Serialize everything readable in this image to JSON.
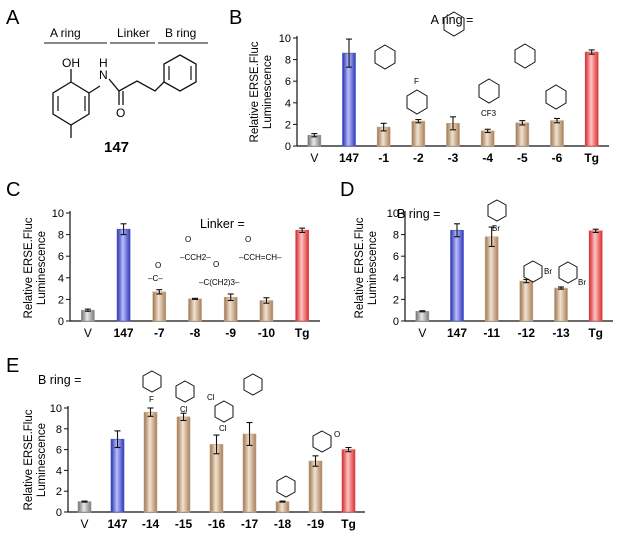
{
  "panel_letters": [
    "A",
    "B",
    "C",
    "D",
    "E"
  ],
  "panelA": {
    "labels": [
      "A ring",
      "Linker",
      "B ring"
    ],
    "compound": "147",
    "atoms": {
      "oh": "OH",
      "nh": "N",
      "h": "H",
      "o": "O"
    }
  },
  "colors": {
    "gray": "#9a9a9a",
    "blue": "#4a52c8",
    "tan": "#c8a684",
    "red": "#e5484a",
    "axis": "#111111"
  },
  "chart_data": [
    {
      "panel": "B",
      "type": "bar",
      "title": "A ring =",
      "ylabel": [
        "Relative ERSE.Fluc",
        "Luminescence"
      ],
      "ylim": [
        0,
        10
      ],
      "yticks": [
        0,
        2,
        4,
        6,
        8,
        10
      ],
      "categories": [
        "V",
        "147",
        "-1",
        "-2",
        "-3",
        "-4",
        "-5",
        "-6",
        "Tg"
      ],
      "values": [
        1.0,
        8.6,
        1.75,
        2.3,
        2.1,
        1.4,
        2.15,
        2.35,
        8.7
      ],
      "errors": [
        0.15,
        1.3,
        0.35,
        0.15,
        0.6,
        0.15,
        0.2,
        0.2,
        0.2
      ],
      "colors": [
        "gray",
        "blue",
        "tan",
        "tan",
        "tan",
        "tan",
        "tan",
        "tan",
        "red"
      ],
      "annotations": [
        "F",
        "CF3"
      ]
    },
    {
      "panel": "C",
      "type": "bar",
      "title": "Linker =",
      "ylabel": [
        "Relative ERSE.Fluc",
        "Luminescence"
      ],
      "ylim": [
        0,
        10
      ],
      "yticks": [
        0,
        2,
        4,
        6,
        8,
        10
      ],
      "categories": [
        "V",
        "147",
        "-7",
        "-8",
        "-9",
        "-10",
        "Tg"
      ],
      "values": [
        1.0,
        8.5,
        2.7,
        2.05,
        2.2,
        1.9,
        8.4
      ],
      "errors": [
        0.1,
        0.5,
        0.2,
        0.05,
        0.3,
        0.25,
        0.2
      ],
      "colors": [
        "gray",
        "blue",
        "tan",
        "tan",
        "tan",
        "tan",
        "red"
      ],
      "annotations": [
        "O",
        "–C–",
        "O",
        "–CCH2–",
        "O",
        "–C(CH2)3–",
        "O",
        "–CCH=CH–"
      ]
    },
    {
      "panel": "D",
      "type": "bar",
      "title": "B ring =",
      "ylabel": [
        "Relative ERSE.Fluc",
        "Luminescence"
      ],
      "ylim": [
        0,
        10
      ],
      "yticks": [
        0,
        2,
        4,
        6,
        8,
        10
      ],
      "categories": [
        "V",
        "147",
        "-11",
        "-12",
        "-13",
        "Tg"
      ],
      "values": [
        0.9,
        8.4,
        7.8,
        3.7,
        3.05,
        8.35
      ],
      "errors": [
        0.05,
        0.6,
        0.9,
        0.15,
        0.1,
        0.15
      ],
      "colors": [
        "gray",
        "blue",
        "tan",
        "tan",
        "tan",
        "red"
      ],
      "annotations": [
        "Br",
        "Br",
        "Br"
      ]
    },
    {
      "panel": "E",
      "type": "bar",
      "title": "B ring =",
      "ylabel": [
        "Relative ERSE.Fluc",
        "Luminescence"
      ],
      "ylim": [
        0,
        10
      ],
      "yticks": [
        0,
        2,
        4,
        6,
        8,
        10
      ],
      "categories": [
        "V",
        "147",
        "-14",
        "-15",
        "-16",
        "-17",
        "-18",
        "-19",
        "Tg"
      ],
      "values": [
        1.0,
        7.0,
        9.6,
        9.15,
        6.5,
        7.5,
        1.0,
        4.9,
        6.0
      ],
      "errors": [
        0.05,
        0.8,
        0.4,
        0.35,
        0.9,
        1.1,
        0.05,
        0.5,
        0.2
      ],
      "colors": [
        "gray",
        "blue",
        "tan",
        "tan",
        "tan",
        "tan",
        "tan",
        "tan",
        "red"
      ],
      "annotations": [
        "F",
        "Cl",
        "Cl",
        "Cl",
        "O"
      ]
    }
  ]
}
